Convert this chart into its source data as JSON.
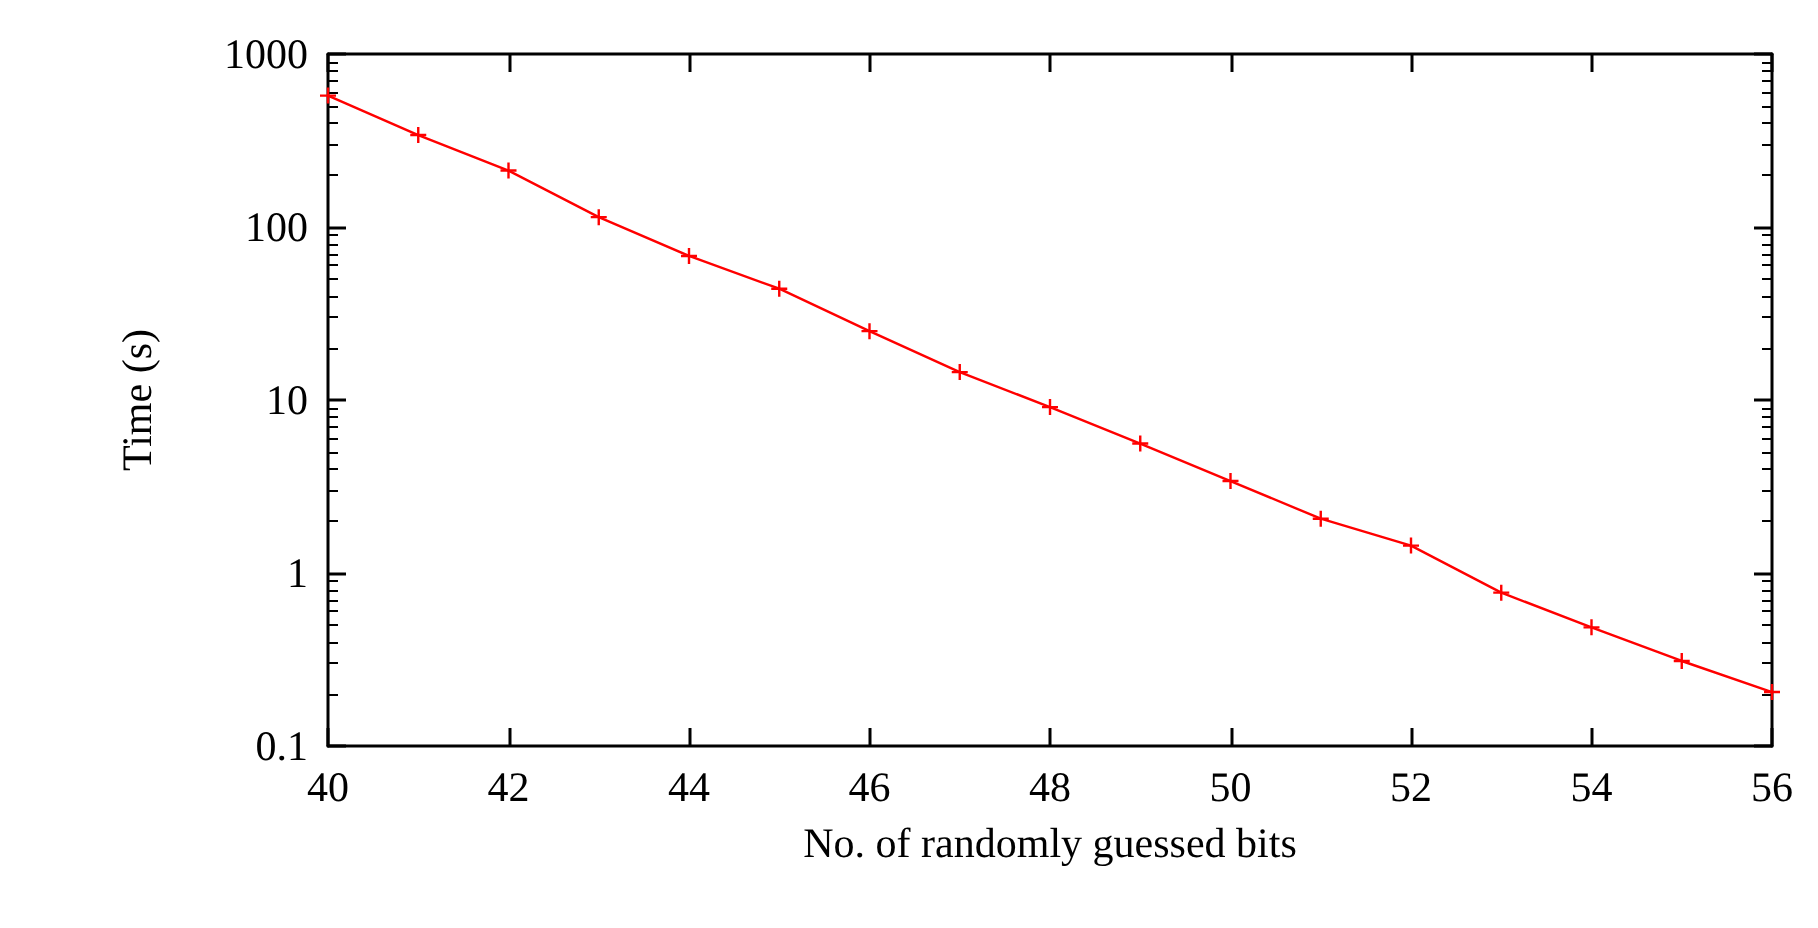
{
  "chart_data": {
    "type": "line",
    "xlabel": "No. of randomly guessed bits",
    "ylabel": "Time (s)",
    "x": [
      40,
      41,
      42,
      43,
      44,
      45,
      46,
      47,
      48,
      49,
      50,
      51,
      52,
      53,
      54,
      55,
      56
    ],
    "series": [
      {
        "color": "#ff0000",
        "values": [
          575,
          340,
          212,
          114,
          68,
          44,
          25,
          14.5,
          9.1,
          5.6,
          3.4,
          2.06,
          1.44,
          0.77,
          0.485,
          0.31,
          0.205
        ]
      }
    ],
    "xlim": [
      40,
      56
    ],
    "xticks": [
      40,
      42,
      44,
      46,
      48,
      50,
      52,
      54,
      56
    ],
    "ylim": [
      0.1,
      1000
    ],
    "yticks": [
      0.1,
      1,
      10,
      100,
      1000
    ],
    "log": "y",
    "grid": false,
    "marker": "cross",
    "line_style": "solid"
  }
}
